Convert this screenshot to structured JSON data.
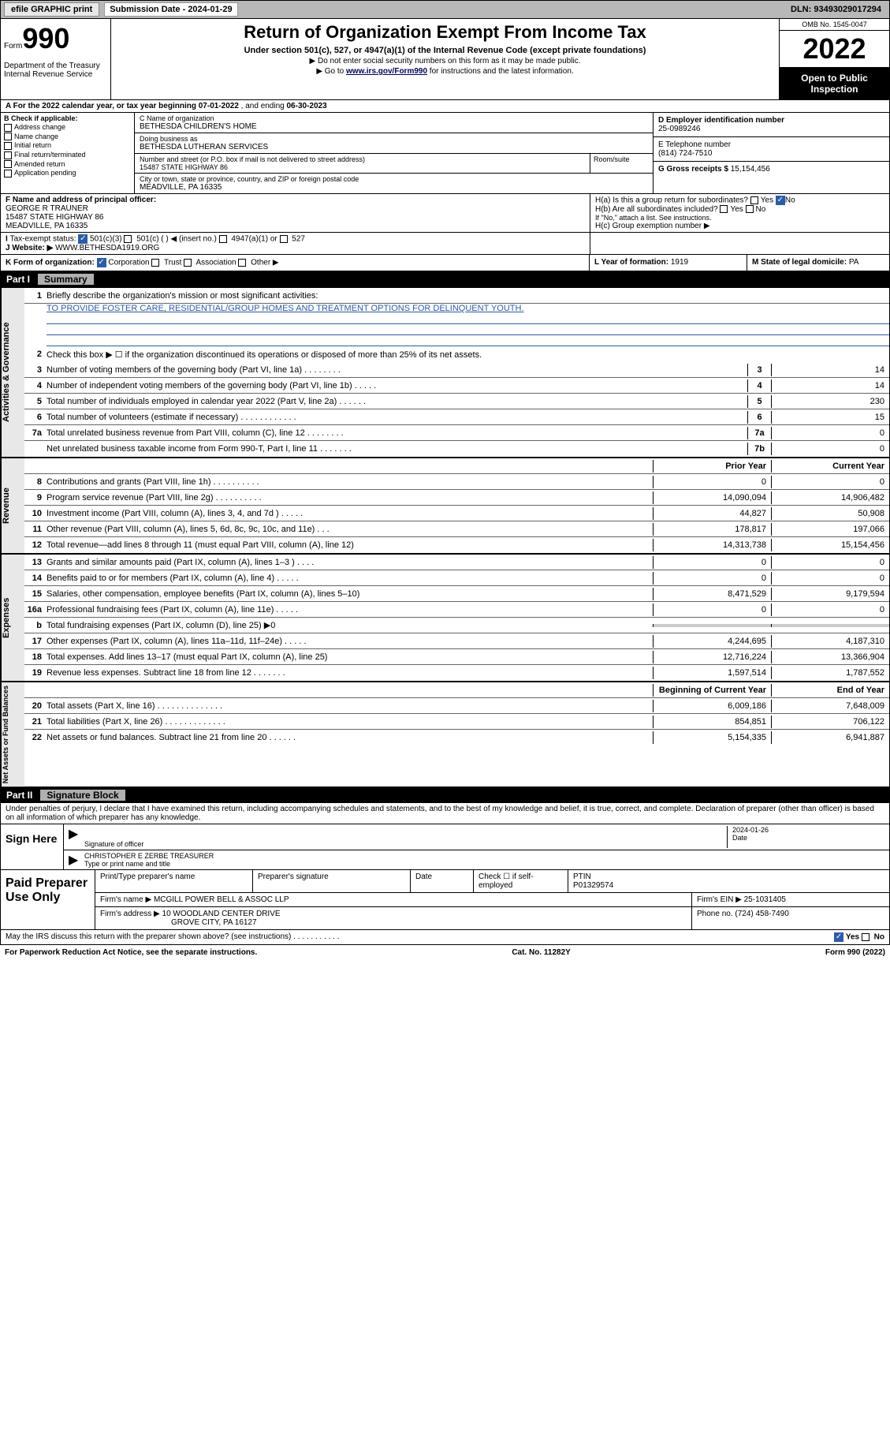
{
  "top": {
    "efile": "efile GRAPHIC print",
    "sub_label": "Submission Date - 2024-01-29",
    "dln": "DLN: 93493029017294"
  },
  "header": {
    "form_word": "Form",
    "form_num": "990",
    "dept": "Department of the Treasury\nInternal Revenue Service",
    "title": "Return of Organization Exempt From Income Tax",
    "subtitle": "Under section 501(c), 527, or 4947(a)(1) of the Internal Revenue Code (except private foundations)",
    "note1": "▶ Do not enter social security numbers on this form as it may be made public.",
    "note2_pre": "▶ Go to ",
    "note2_link": "www.irs.gov/Form990",
    "note2_post": " for instructions and the latest information.",
    "omb": "OMB No. 1545-0047",
    "year": "2022",
    "open": "Open to Public Inspection"
  },
  "lineA": {
    "label": "A For the 2022 calendar year, or tax year beginning ",
    "begin": "07-01-2022",
    "mid": " , and ending ",
    "end": "06-30-2023"
  },
  "colB": {
    "hdr": "B Check if applicable:",
    "items": [
      "Address change",
      "Name change",
      "Initial return",
      "Final return/terminated",
      "Amended return",
      "Application pending"
    ]
  },
  "nameC": {
    "lbl": "C Name of organization",
    "val": "BETHESDA CHILDREN'S HOME",
    "dba_lbl": "Doing business as",
    "dba": "BETHESDA LUTHERAN SERVICES",
    "street_lbl": "Number and street (or P.O. box if mail is not delivered to street address)",
    "street": "15487 STATE HIGHWAY 86",
    "room_lbl": "Room/suite",
    "city_lbl": "City or town, state or province, country, and ZIP or foreign postal code",
    "city": "MEADVILLE, PA  16335"
  },
  "colD": {
    "ein_lbl": "D Employer identification number",
    "ein": "25-0989246",
    "tel_lbl": "E Telephone number",
    "tel": "(814) 724-7510",
    "gross_lbl": "G Gross receipts $ ",
    "gross": "15,154,456"
  },
  "rowF": {
    "lbl": "F Name and address of principal officer:",
    "name": "GEORGE R TRAUNER",
    "addr1": "15487 STATE HIGHWAY 86",
    "addr2": "MEADVILLE, PA  16335"
  },
  "rowH": {
    "ha": "H(a)  Is this a group return for subordinates?",
    "ha_no": "No",
    "hb": "H(b)  Are all subordinates included?",
    "hb_note": "If \"No,\" attach a list. See instructions.",
    "hc": "H(c)  Group exemption number ▶"
  },
  "rowI": {
    "lbl": "Tax-exempt status:",
    "c3": "501(c)(3)",
    "c": "501(c) (  ) ◀ (insert no.)",
    "a1": "4947(a)(1) or",
    "s527": "527"
  },
  "rowJ": {
    "lbl": "J  Website: ▶",
    "val": "WWW.BETHESDA1919.ORG"
  },
  "rowK": {
    "lbl": "K Form of organization:",
    "corp": "Corporation",
    "trust": "Trust",
    "assoc": "Association",
    "other": "Other ▶"
  },
  "rowL": {
    "lbl": "L Year of formation: ",
    "val": "1919"
  },
  "rowM": {
    "lbl": "M State of legal domicile: ",
    "val": "PA"
  },
  "part1": {
    "label": "Part I",
    "title": "Summary"
  },
  "summary": {
    "q1": "Briefly describe the organization's mission or most significant activities:",
    "mission": "TO PROVIDE FOSTER CARE, RESIDENTIAL/GROUP HOMES AND TREATMENT OPTIONS FOR DELINQUENT YOUTH.",
    "q2": "Check this box ▶ ☐  if the organization discontinued its operations or disposed of more than 25% of its net assets.",
    "rows_gov": [
      {
        "n": "3",
        "t": "Number of voting members of the governing body (Part VI, line 1a)  .   .   .   .   .   .   .   .",
        "b": "3",
        "v": "14"
      },
      {
        "n": "4",
        "t": "Number of independent voting members of the governing body (Part VI, line 1b)  .   .   .   .   .",
        "b": "4",
        "v": "14"
      },
      {
        "n": "5",
        "t": "Total number of individuals employed in calendar year 2022 (Part V, line 2a)  .   .   .   .   .   .",
        "b": "5",
        "v": "230"
      },
      {
        "n": "6",
        "t": "Total number of volunteers (estimate if necessary)  .   .   .   .   .   .   .   .   .   .   .   .",
        "b": "6",
        "v": "15"
      },
      {
        "n": "7a",
        "t": "Total unrelated business revenue from Part VIII, column (C), line 12  .   .   .   .   .   .   .   .",
        "b": "7a",
        "v": "0"
      },
      {
        "n": "",
        "t": "Net unrelated business taxable income from Form 990-T, Part I, line 11  .   .   .   .   .   .   .",
        "b": "7b",
        "v": "0"
      }
    ],
    "hdr_prior": "Prior Year",
    "hdr_curr": "Current Year",
    "rows_rev": [
      {
        "n": "8",
        "t": "Contributions and grants (Part VIII, line 1h)  .   .   .   .   .   .   .   .   .   .",
        "p": "0",
        "c": "0"
      },
      {
        "n": "9",
        "t": "Program service revenue (Part VIII, line 2g)  .   .   .   .   .   .   .   .   .   .",
        "p": "14,090,094",
        "c": "14,906,482"
      },
      {
        "n": "10",
        "t": "Investment income (Part VIII, column (A), lines 3, 4, and 7d )  .   .   .   .   .",
        "p": "44,827",
        "c": "50,908"
      },
      {
        "n": "11",
        "t": "Other revenue (Part VIII, column (A), lines 5, 6d, 8c, 9c, 10c, and 11e)  .   .   .",
        "p": "178,817",
        "c": "197,066"
      },
      {
        "n": "12",
        "t": "Total revenue—add lines 8 through 11 (must equal Part VIII, column (A), line 12)",
        "p": "14,313,738",
        "c": "15,154,456"
      }
    ],
    "rows_exp": [
      {
        "n": "13",
        "t": "Grants and similar amounts paid (Part IX, column (A), lines 1–3 )  .   .   .   .",
        "p": "0",
        "c": "0"
      },
      {
        "n": "14",
        "t": "Benefits paid to or for members (Part IX, column (A), line 4)  .   .   .   .   .",
        "p": "0",
        "c": "0"
      },
      {
        "n": "15",
        "t": "Salaries, other compensation, employee benefits (Part IX, column (A), lines 5–10)",
        "p": "8,471,529",
        "c": "9,179,594"
      },
      {
        "n": "16a",
        "t": "Professional fundraising fees (Part IX, column (A), line 11e)  .   .   .   .   .",
        "p": "0",
        "c": "0"
      },
      {
        "n": "b",
        "t": "Total fundraising expenses (Part IX, column (D), line 25) ▶0",
        "p": "",
        "c": "",
        "shade": true
      },
      {
        "n": "17",
        "t": "Other expenses (Part IX, column (A), lines 11a–11d, 11f–24e)  .   .   .   .   .",
        "p": "4,244,695",
        "c": "4,187,310"
      },
      {
        "n": "18",
        "t": "Total expenses. Add lines 13–17 (must equal Part IX, column (A), line 25)",
        "p": "12,716,224",
        "c": "13,366,904"
      },
      {
        "n": "19",
        "t": "Revenue less expenses. Subtract line 18 from line 12  .   .   .   .   .   .   .",
        "p": "1,597,514",
        "c": "1,787,552"
      }
    ],
    "hdr_beg": "Beginning of Current Year",
    "hdr_end": "End of Year",
    "rows_net": [
      {
        "n": "20",
        "t": "Total assets (Part X, line 16)  .   .   .   .   .   .   .   .   .   .   .   .   .   .",
        "p": "6,009,186",
        "c": "7,648,009"
      },
      {
        "n": "21",
        "t": "Total liabilities (Part X, line 26)  .   .   .   .   .   .   .   .   .   .   .   .   .",
        "p": "854,851",
        "c": "706,122"
      },
      {
        "n": "22",
        "t": "Net assets or fund balances. Subtract line 21 from line 20  .   .   .   .   .   .",
        "p": "5,154,335",
        "c": "6,941,887"
      }
    ]
  },
  "part2": {
    "label": "Part II",
    "title": "Signature Block"
  },
  "sig": {
    "decl": "Under penalties of perjury, I declare that I have examined this return, including accompanying schedules and statements, and to the best of my knowledge and belief, it is true, correct, and complete. Declaration of preparer (other than officer) is based on all information of which preparer has any knowledge.",
    "sign_here": "Sign Here",
    "sig_lbl": "Signature of officer",
    "date_lbl": "Date",
    "date": "2024-01-26",
    "name": "CHRISTOPHER E ZERBE  TREASURER",
    "name_lbl": "Type or print name and title"
  },
  "paid": {
    "hdr": "Paid Preparer Use Only",
    "col1": "Print/Type preparer's name",
    "col2": "Preparer's signature",
    "col3": "Date",
    "col4": "Check ☐ if self-employed",
    "col5_lbl": "PTIN",
    "col5": "P01329574",
    "firm_lbl": "Firm's name   ▶ ",
    "firm": "MCGILL POWER BELL & ASSOC LLP",
    "ein_lbl": "Firm's EIN ▶ ",
    "ein": "25-1031405",
    "addr_lbl": "Firm's address ▶ ",
    "addr1": "10 WOODLAND CENTER DRIVE",
    "addr2": "GROVE CITY, PA  16127",
    "phone_lbl": "Phone no. ",
    "phone": "(724) 458-7490"
  },
  "footer": {
    "q": "May the IRS discuss this return with the preparer shown above? (see instructions)  .   .   .   .   .   .   .   .   .   .   .",
    "yes": "Yes",
    "no": "No",
    "pra": "For Paperwork Reduction Act Notice, see the separate instructions.",
    "cat": "Cat. No. 11282Y",
    "form": "Form 990 (2022)"
  }
}
